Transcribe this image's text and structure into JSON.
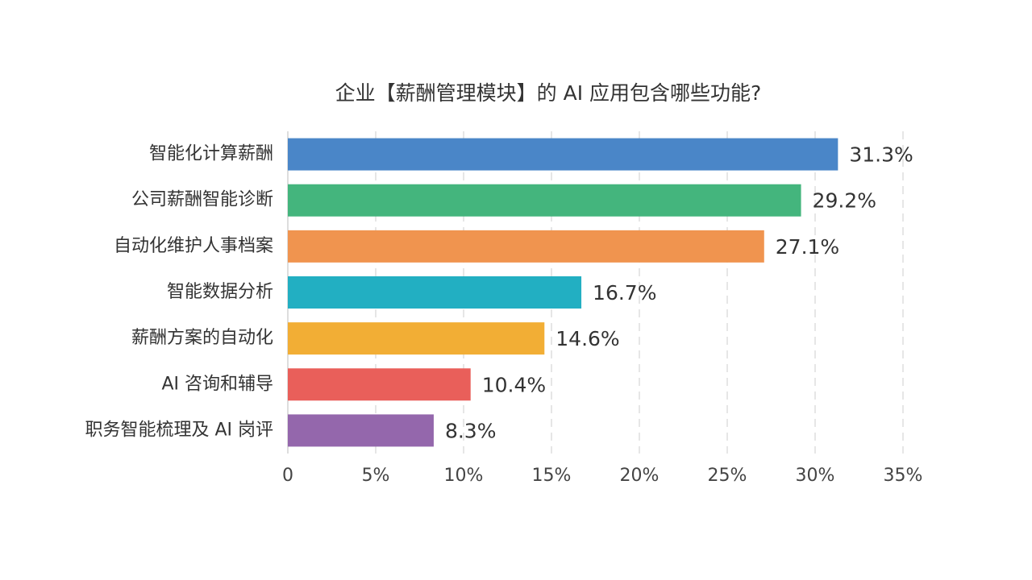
{
  "chart_data": {
    "type": "bar",
    "orientation": "horizontal",
    "title": "企业【薪酬管理模块】的 AI 应用包含哪些功能?",
    "categories": [
      "智能化计算薪酬",
      "公司薪酬智能诊断",
      "自动化维护人事档案",
      "智能数据分析",
      "薪酬方案的自动化",
      "AI 咨询和辅导",
      "职务智能梳理及 AI 岗评"
    ],
    "values": [
      31.3,
      29.2,
      27.1,
      16.7,
      14.6,
      10.4,
      8.3
    ],
    "value_labels": [
      "31.3%",
      "29.2%",
      "27.1%",
      "16.7%",
      "14.6%",
      "10.4%",
      "8.3%"
    ],
    "colors": [
      "#4a86c8",
      "#44b57d",
      "#f0944f",
      "#22afc2",
      "#f2ae35",
      "#e95f5a",
      "#9467ac"
    ],
    "xlim": [
      0,
      35
    ],
    "xticks": [
      0,
      {
        "value": 5,
        "label": "5%"
      },
      {
        "value": 10,
        "label": "10%"
      },
      {
        "value": 15,
        "label": "15%"
      },
      {
        "value": 20,
        "label": "20%"
      },
      {
        "value": 25,
        "label": "25%"
      },
      {
        "value": 30,
        "label": "30%"
      },
      {
        "value": 35,
        "label": "35%"
      }
    ],
    "grid": true
  }
}
